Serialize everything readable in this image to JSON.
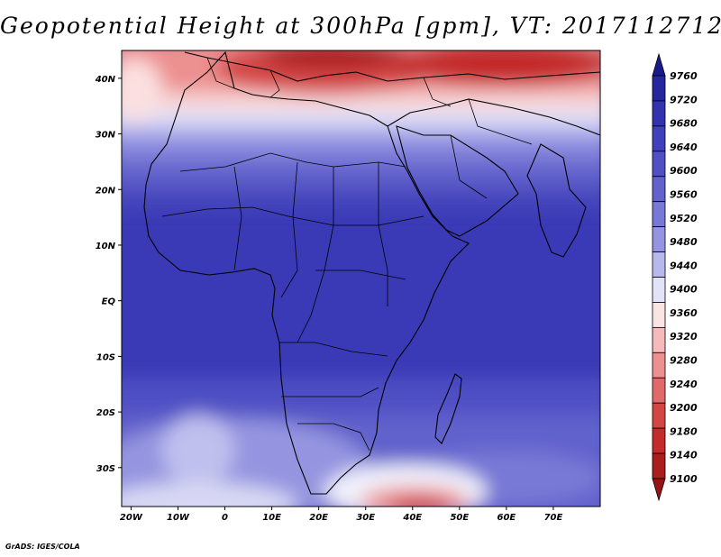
{
  "title": "Geopotential Height at 300hPa [gpm], VT: 2017112712",
  "credit": "GrADS: IGES/COLA",
  "map": {
    "lon_range": [
      -22,
      80
    ],
    "lat_range": [
      -37,
      45
    ],
    "lon_ticks": [
      {
        "value": -20,
        "label": "20W"
      },
      {
        "value": -10,
        "label": "10W"
      },
      {
        "value": 0,
        "label": "0"
      },
      {
        "value": 10,
        "label": "10E"
      },
      {
        "value": 20,
        "label": "20E"
      },
      {
        "value": 30,
        "label": "30E"
      },
      {
        "value": 40,
        "label": "40E"
      },
      {
        "value": 50,
        "label": "50E"
      },
      {
        "value": 60,
        "label": "60E"
      },
      {
        "value": 70,
        "label": "70E"
      }
    ],
    "lat_ticks": [
      {
        "value": 40,
        "label": "40N"
      },
      {
        "value": 30,
        "label": "30N"
      },
      {
        "value": 20,
        "label": "20N"
      },
      {
        "value": 10,
        "label": "10N"
      },
      {
        "value": 0,
        "label": "EQ"
      },
      {
        "value": -10,
        "label": "10S"
      },
      {
        "value": -20,
        "label": "20S"
      },
      {
        "value": -30,
        "label": "30S"
      }
    ]
  },
  "colorbar": {
    "levels": [
      "9760",
      "9720",
      "9680",
      "9640",
      "9600",
      "9560",
      "9520",
      "9480",
      "9440",
      "9400",
      "9360",
      "9320",
      "9280",
      "9240",
      "9200",
      "9180",
      "9140",
      "9100"
    ],
    "colors": [
      "#1a1a8c",
      "#26269f",
      "#3333b0",
      "#4040bc",
      "#5050c4",
      "#6262cc",
      "#7878d6",
      "#9494e0",
      "#b8b8ec",
      "#e2e2f8",
      "#fbe4e4",
      "#f5baba",
      "#ec9090",
      "#e06a6a",
      "#d44646",
      "#c42c2c",
      "#ac1e1e",
      "#961414"
    ]
  }
}
